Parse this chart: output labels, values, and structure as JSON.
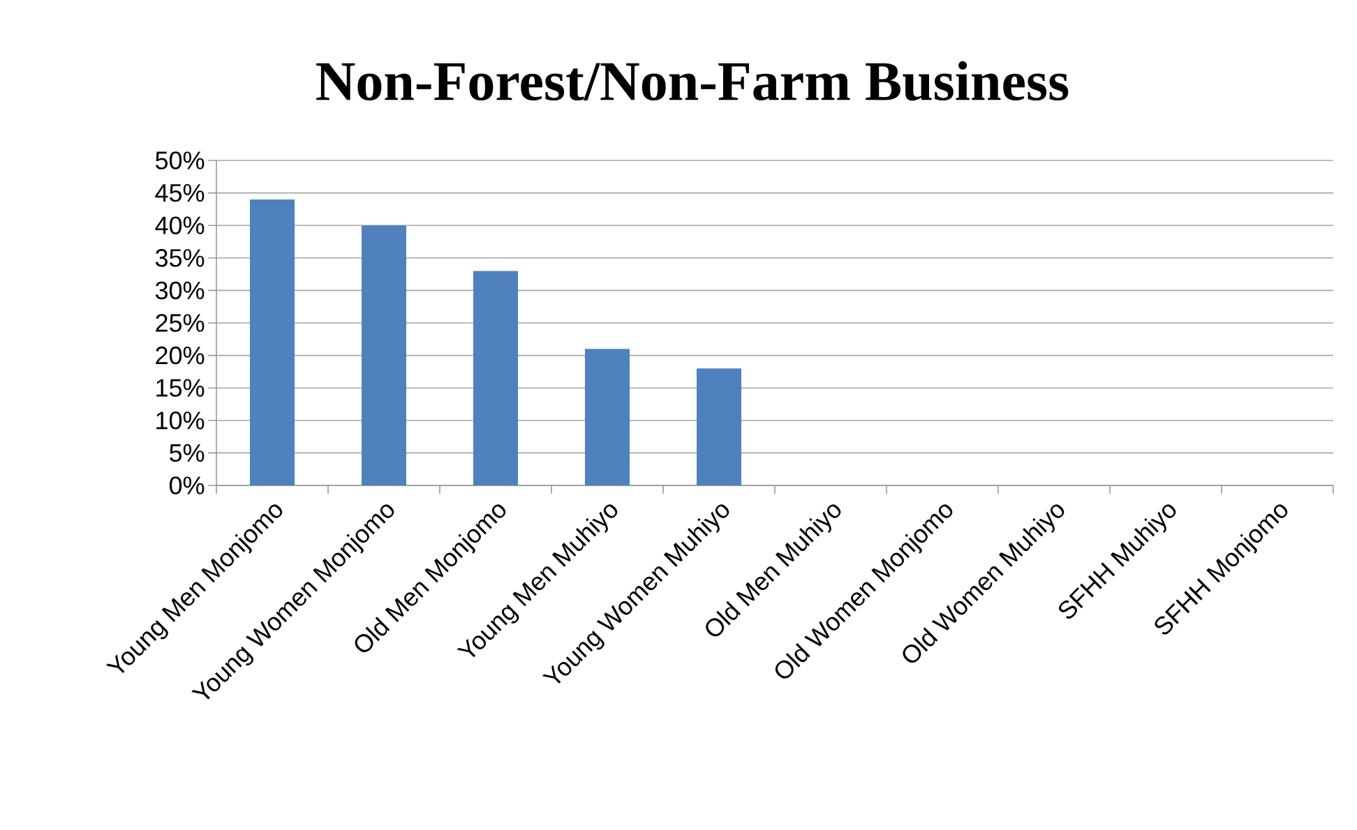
{
  "chart_data": {
    "type": "bar",
    "title": "Non-Forest/Non-Farm Business",
    "categories": [
      "Young Men Monjomo",
      "Young Women Monjomo",
      "Old Men Monjomo",
      "Young Men Muhiyo",
      "Young Women Muhiyo",
      "Old Men Muhiyo",
      "Old Women Monjomo",
      "Old Women Muhiyo",
      "SFHH Muhiyo",
      "SFHH Monjomo"
    ],
    "values": [
      44,
      40,
      33,
      21,
      18,
      0,
      0,
      0,
      0,
      0
    ],
    "color": "#4f81bd",
    "ylim": [
      0,
      50
    ],
    "yticks": [
      {
        "value": 0,
        "label": "0%"
      },
      {
        "value": 5,
        "label": "5%"
      },
      {
        "value": 10,
        "label": "10%"
      },
      {
        "value": 15,
        "label": "15%"
      },
      {
        "value": 20,
        "label": "20%"
      },
      {
        "value": 25,
        "label": "25%"
      },
      {
        "value": 30,
        "label": "30%"
      },
      {
        "value": 35,
        "label": "35%"
      },
      {
        "value": 40,
        "label": "40%"
      },
      {
        "value": 45,
        "label": "45%"
      },
      {
        "value": 50,
        "label": "50%"
      }
    ],
    "grid": "y"
  }
}
